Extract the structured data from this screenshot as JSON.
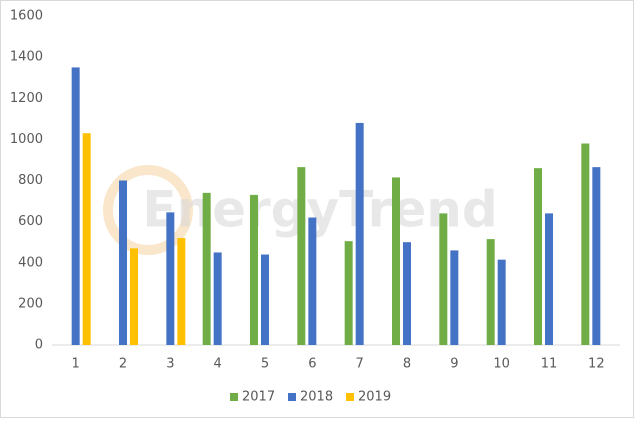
{
  "chart_data": {
    "type": "bar",
    "watermark": "EnergyTrend",
    "categories": [
      "1",
      "2",
      "3",
      "4",
      "5",
      "6",
      "7",
      "8",
      "9",
      "10",
      "11",
      "12"
    ],
    "series": [
      {
        "name": "2017",
        "color": "#70ad47",
        "values": [
          null,
          null,
          null,
          740,
          730,
          865,
          505,
          815,
          640,
          515,
          860,
          980
        ]
      },
      {
        "name": "2018",
        "color": "#4472c4",
        "values": [
          1350,
          800,
          645,
          450,
          440,
          620,
          1080,
          500,
          460,
          415,
          640,
          865
        ]
      },
      {
        "name": "2019",
        "color": "#ffc000",
        "values": [
          1030,
          470,
          520,
          null,
          null,
          null,
          null,
          null,
          null,
          null,
          null,
          null
        ]
      }
    ],
    "ylim": [
      0,
      1600
    ],
    "yticks": [
      0,
      200,
      400,
      600,
      800,
      1000,
      1200,
      1400,
      1600
    ],
    "grid": false,
    "legend": "bottom"
  }
}
